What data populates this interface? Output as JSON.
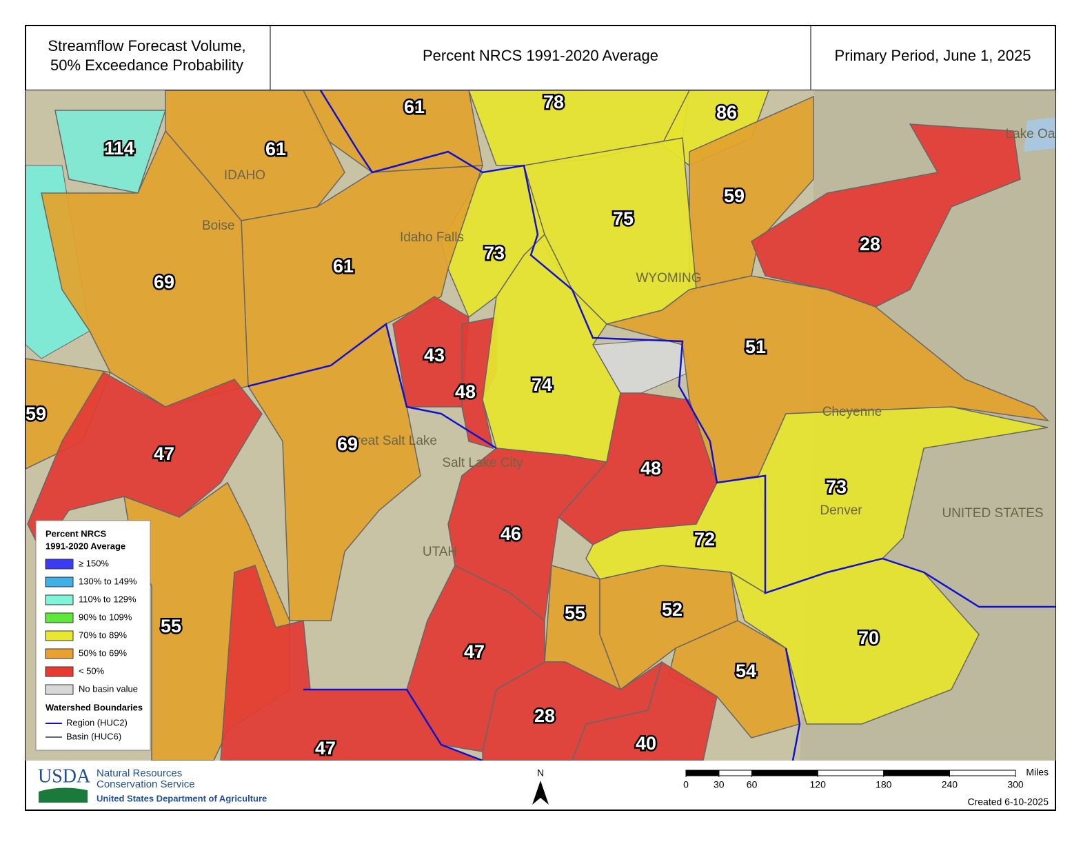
{
  "header": {
    "title_lines": [
      "Streamflow Forecast Volume,",
      "50% Exceedance Probability"
    ],
    "center": "Percent NRCS 1991-2020 Average",
    "right": "Primary Period, June 1, 2025"
  },
  "map": {
    "basins": [
      {
        "value": 61,
        "color": "#e2a22e"
      },
      {
        "value": 78,
        "color": "#e6e42e"
      },
      {
        "value": 86,
        "color": "#e6e42e"
      },
      {
        "value": 114,
        "color": "#7fe9d5"
      },
      {
        "value": 61,
        "color": "#e2a22e"
      },
      {
        "value": 59,
        "color": "#e2a22e"
      },
      {
        "value": 75,
        "color": "#e6e42e"
      },
      {
        "value": 28,
        "color": "#e23b35"
      },
      {
        "value": 73,
        "color": "#e6e42e"
      },
      {
        "value": 61,
        "color": "#e2a22e"
      },
      {
        "value": 69,
        "color": "#e2a22e"
      },
      {
        "value": 51,
        "color": "#e2a22e"
      },
      {
        "value": 43,
        "color": "#e23b35"
      },
      {
        "value": 48,
        "color": "#e23b35"
      },
      {
        "value": 74,
        "color": "#e6e42e"
      },
      {
        "value": 59,
        "color": "#e2a22e"
      },
      {
        "value": 69,
        "color": "#e2a22e"
      },
      {
        "value": 47,
        "color": "#e23b35"
      },
      {
        "value": 48,
        "color": "#e23b35"
      },
      {
        "value": 73,
        "color": "#e6e42e"
      },
      {
        "value": 46,
        "color": "#e23b35"
      },
      {
        "value": 72,
        "color": "#e6e42e"
      },
      {
        "value": 55,
        "color": "#e2a22e"
      },
      {
        "value": 52,
        "color": "#e2a22e"
      },
      {
        "value": 55,
        "color": "#e2a22e"
      },
      {
        "value": 70,
        "color": "#e6e42e"
      },
      {
        "value": 47,
        "color": "#e23b35"
      },
      {
        "value": 54,
        "color": "#e2a22e"
      },
      {
        "value": 28,
        "color": "#e23b35"
      },
      {
        "value": 40,
        "color": "#e23b35"
      },
      {
        "value": 47,
        "color": "#e23b35"
      }
    ],
    "places": [
      "Boise",
      "Idaho Falls",
      "IDAHO",
      "WYOMING",
      "Salt Lake City",
      "Great Salt Lake",
      "UTAH",
      "Cheyenne",
      "Denver",
      "Lake Oahe",
      "UNITED STATES"
    ]
  },
  "legend": {
    "title_lines": [
      "Percent NRCS",
      "1991-2020 Average"
    ],
    "items": [
      {
        "label": "≥ 150%",
        "color": "#3b3bf5"
      },
      {
        "label": "130% to 149%",
        "color": "#3fb0e8"
      },
      {
        "label": "110% to 129%",
        "color": "#7ff5d8"
      },
      {
        "label": "90% to 109%",
        "color": "#5ee83a"
      },
      {
        "label": "70% to 89%",
        "color": "#e8e830"
      },
      {
        "label": "50% to 69%",
        "color": "#e8a030"
      },
      {
        "label": "< 50%",
        "color": "#e83a30"
      },
      {
        "label": "No basin value",
        "color": "#d8d8d8"
      }
    ],
    "boundaries_title": "Watershed Boundaries",
    "boundaries": [
      {
        "label": "Region (HUC2)",
        "color": "#1010d0"
      },
      {
        "label": "Basin (HUC6)",
        "color": "#666666"
      }
    ]
  },
  "footer": {
    "agency_short": "USDA",
    "agency_lines": [
      "Natural Resources",
      "Conservation Service"
    ],
    "department": "United States Department of Agriculture",
    "north": "N",
    "scale": {
      "range": [
        0,
        300
      ],
      "ticks": [
        0,
        30,
        60,
        120,
        180,
        240,
        300
      ],
      "unit": "Miles"
    },
    "created": "Created 6-10-2025"
  }
}
